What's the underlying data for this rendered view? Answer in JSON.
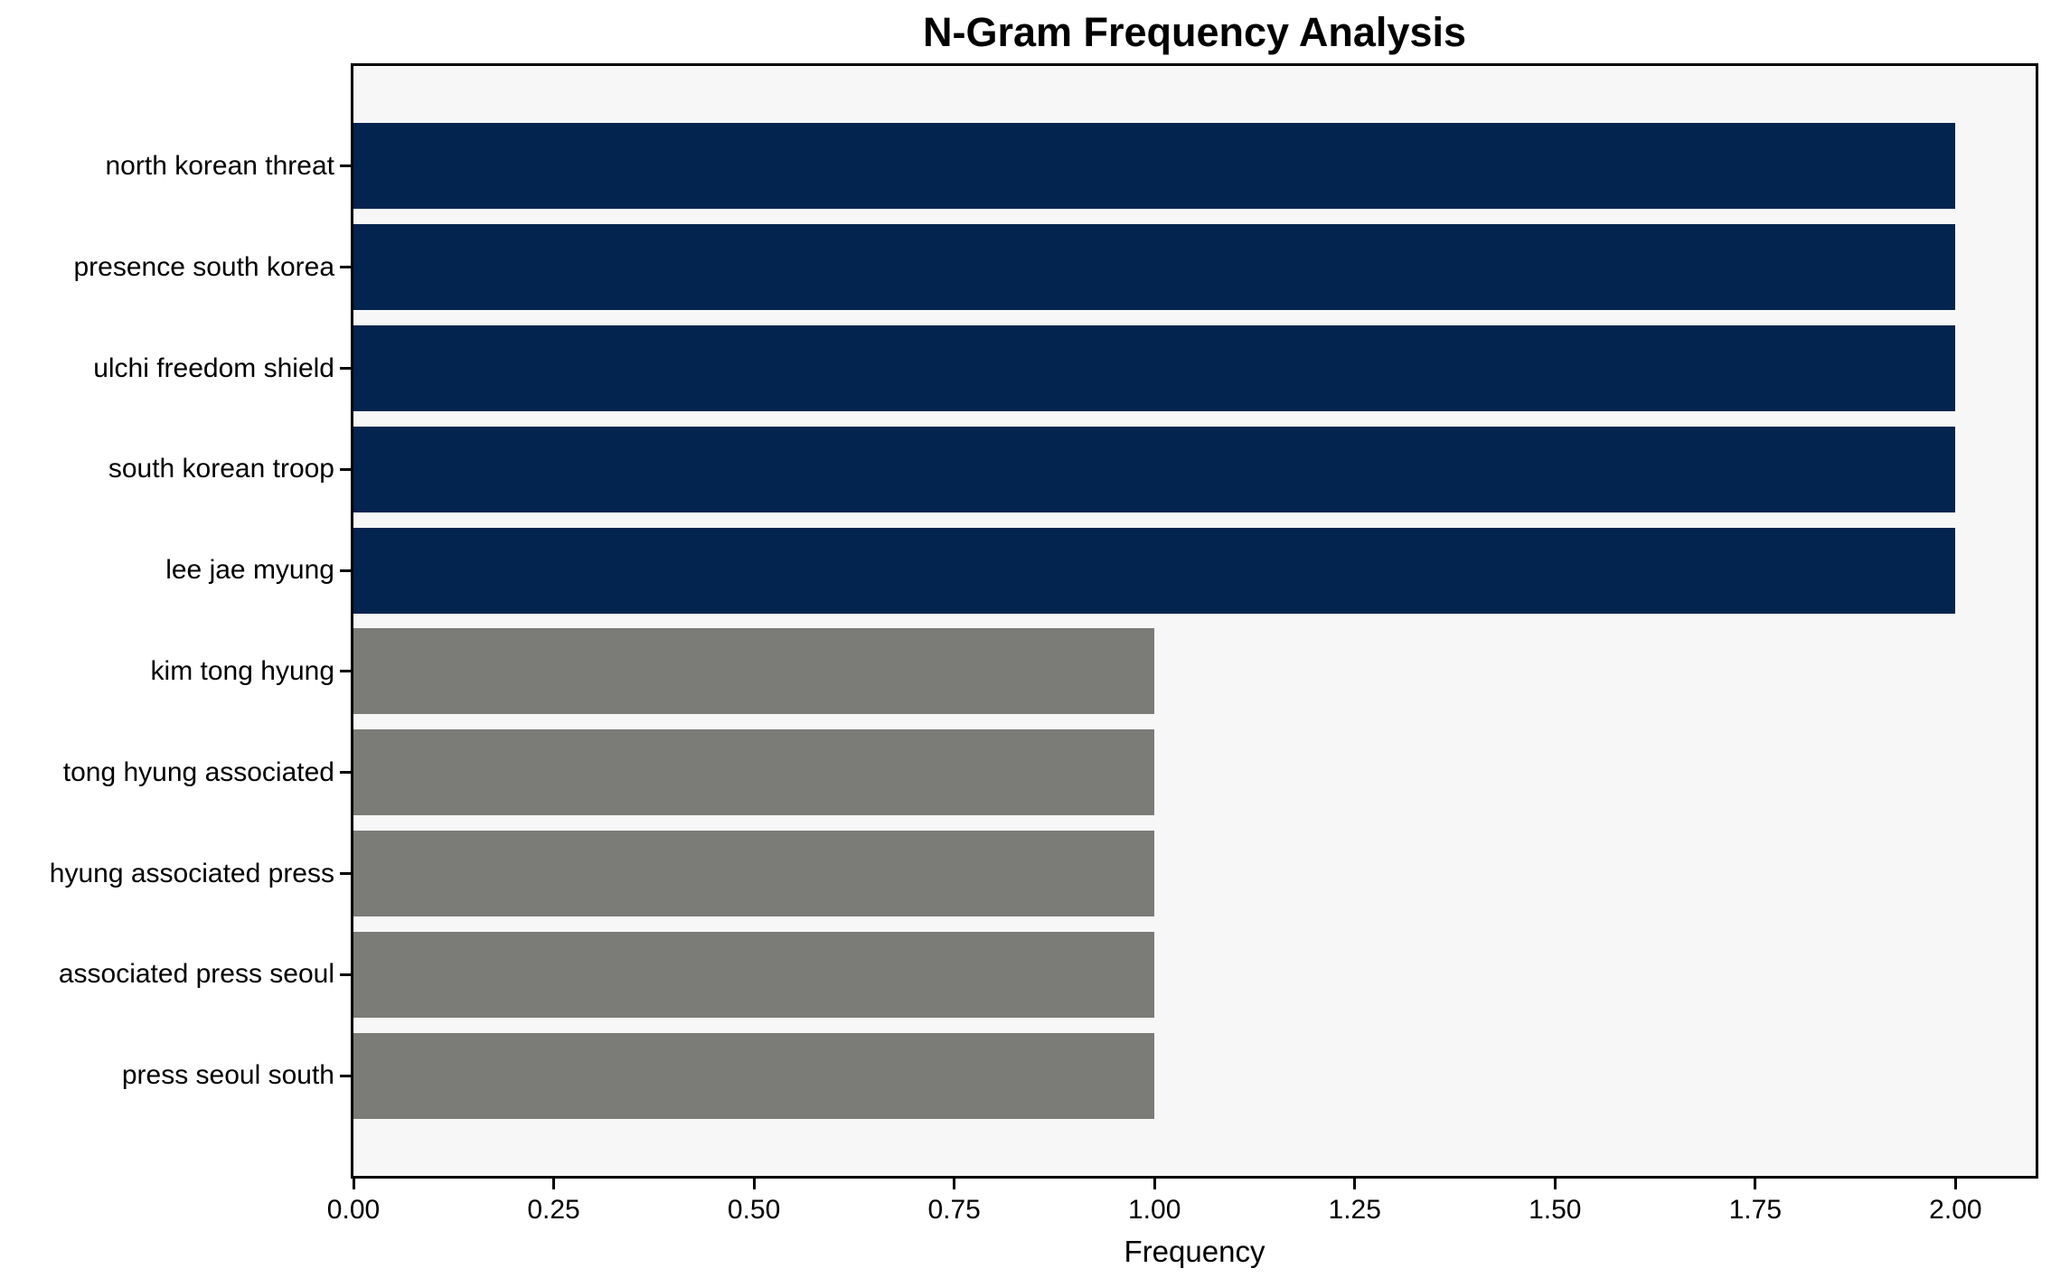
{
  "chart_data": {
    "type": "bar",
    "orientation": "horizontal",
    "title": "N-Gram Frequency Analysis",
    "xlabel": "Frequency",
    "ylabel": "",
    "categories": [
      "north korean threat",
      "presence south korea",
      "ulchi freedom shield",
      "south korean troop",
      "lee jae myung",
      "kim tong hyung",
      "tong hyung associated",
      "hyung associated press",
      "associated press seoul",
      "press seoul south"
    ],
    "values": [
      2.0,
      2.0,
      2.0,
      2.0,
      2.0,
      1.0,
      1.0,
      1.0,
      1.0,
      1.0
    ],
    "bar_colors": [
      "#02244e",
      "#02244e",
      "#02244e",
      "#02244e",
      "#02244e",
      "#7b7b77",
      "#7b7b77",
      "#7b7b77",
      "#7b7b77",
      "#7b7b77"
    ],
    "xlim": [
      0,
      2.1
    ],
    "x_tick_values": [
      0.0,
      0.25,
      0.5,
      0.75,
      1.0,
      1.25,
      1.5,
      1.75,
      2.0
    ],
    "x_tick_labels": [
      "0.00",
      "0.25",
      "0.50",
      "0.75",
      "1.00",
      "1.25",
      "1.50",
      "1.75",
      "2.00"
    ],
    "grid": false,
    "legend": "none",
    "plot_background": "#f7f7f7",
    "figure_background": "#ffffff",
    "highlight_color": "#02244e",
    "muted_color": "#7b7b77"
  }
}
